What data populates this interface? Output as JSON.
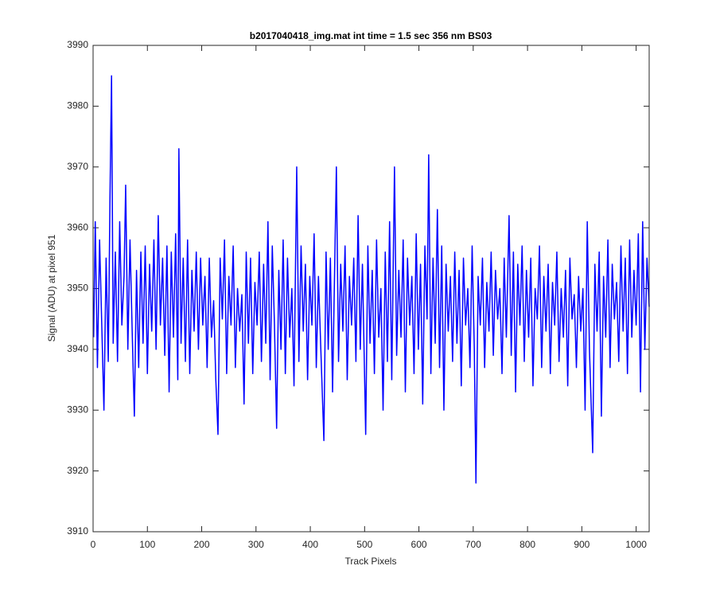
{
  "chart_data": {
    "type": "line",
    "title": "b2017040418_img.mat int time = 1.5 sec  356 nm BS03",
    "x_label": "Track Pixels",
    "y_label": "Signal (ADU) at pixel 951",
    "color": "#0000ff",
    "xlim": [
      0,
      1024
    ],
    "ylim": [
      3910,
      3990
    ],
    "xticks": [
      0,
      100,
      200,
      300,
      400,
      500,
      600,
      700,
      800,
      900,
      1000
    ],
    "yticks": [
      3910,
      3920,
      3930,
      3940,
      3950,
      3960,
      3970,
      3980,
      3990
    ],
    "grid": false,
    "x": [
      1,
      4,
      8,
      12,
      16,
      20,
      24,
      28,
      31,
      34,
      37,
      41,
      45,
      49,
      53,
      57,
      60,
      64,
      68,
      72,
      76,
      80,
      84,
      88,
      92,
      96,
      100,
      104,
      108,
      112,
      116,
      120,
      124,
      128,
      132,
      136,
      140,
      144,
      148,
      152,
      156,
      158,
      162,
      166,
      170,
      174,
      178,
      182,
      186,
      190,
      194,
      198,
      202,
      206,
      210,
      214,
      218,
      222,
      226,
      230,
      234,
      238,
      242,
      246,
      250,
      254,
      258,
      262,
      266,
      270,
      274,
      278,
      282,
      286,
      290,
      294,
      298,
      302,
      306,
      310,
      314,
      318,
      322,
      326,
      330,
      334,
      338,
      342,
      346,
      350,
      354,
      358,
      362,
      366,
      370,
      375,
      379,
      383,
      387,
      391,
      395,
      399,
      403,
      407,
      411,
      415,
      419,
      425,
      429,
      433,
      437,
      441,
      448,
      452,
      456,
      460,
      464,
      468,
      472,
      476,
      480,
      484,
      488,
      492,
      496,
      502,
      506,
      510,
      514,
      518,
      522,
      526,
      530,
      534,
      538,
      542,
      546,
      550,
      555,
      559,
      563,
      567,
      571,
      575,
      579,
      583,
      587,
      591,
      595,
      599,
      603,
      607,
      611,
      615,
      618,
      622,
      626,
      630,
      634,
      638,
      642,
      646,
      650,
      654,
      658,
      662,
      666,
      670,
      674,
      678,
      682,
      686,
      690,
      694,
      698,
      702,
      705,
      709,
      713,
      717,
      721,
      725,
      729,
      733,
      737,
      741,
      745,
      749,
      753,
      757,
      761,
      766,
      770,
      774,
      778,
      782,
      786,
      790,
      794,
      798,
      802,
      806,
      810,
      814,
      818,
      822,
      826,
      830,
      834,
      838,
      842,
      846,
      850,
      854,
      858,
      862,
      866,
      870,
      874,
      878,
      882,
      886,
      890,
      894,
      898,
      902,
      906,
      910,
      914,
      920,
      924,
      928,
      932,
      936,
      940,
      944,
      948,
      952,
      956,
      960,
      964,
      968,
      972,
      976,
      980,
      984,
      988,
      992,
      996,
      1000,
      1004,
      1008,
      1012,
      1016,
      1020,
      1024
    ],
    "values": [
      3942,
      3961,
      3937,
      3958,
      3944,
      3930,
      3955,
      3938,
      3964,
      3985,
      3941,
      3956,
      3938,
      3961,
      3944,
      3952,
      3967,
      3940,
      3958,
      3943,
      3929,
      3953,
      3937,
      3956,
      3941,
      3957,
      3936,
      3954,
      3943,
      3958,
      3940,
      3962,
      3944,
      3955,
      3939,
      3957,
      3933,
      3956,
      3942,
      3959,
      3935,
      3973,
      3941,
      3955,
      3938,
      3958,
      3936,
      3953,
      3943,
      3956,
      3940,
      3955,
      3944,
      3952,
      3937,
      3955,
      3942,
      3948,
      3935,
      3926,
      3955,
      3945,
      3958,
      3936,
      3952,
      3944,
      3957,
      3937,
      3950,
      3943,
      3949,
      3931,
      3956,
      3941,
      3955,
      3936,
      3951,
      3944,
      3956,
      3938,
      3954,
      3941,
      3961,
      3935,
      3957,
      3944,
      3927,
      3953,
      3940,
      3958,
      3936,
      3955,
      3942,
      3950,
      3934,
      3970,
      3938,
      3957,
      3943,
      3954,
      3935,
      3952,
      3944,
      3959,
      3937,
      3952,
      3941,
      3925,
      3956,
      3940,
      3955,
      3933,
      3970,
      3938,
      3954,
      3943,
      3957,
      3935,
      3952,
      3944,
      3955,
      3938,
      3962,
      3940,
      3954,
      3926,
      3957,
      3941,
      3953,
      3936,
      3958,
      3942,
      3950,
      3930,
      3956,
      3938,
      3961,
      3935,
      3970,
      3939,
      3953,
      3942,
      3958,
      3933,
      3955,
      3944,
      3952,
      3936,
      3959,
      3940,
      3954,
      3931,
      3957,
      3945,
      3972,
      3936,
      3955,
      3941,
      3963,
      3937,
      3957,
      3930,
      3954,
      3943,
      3952,
      3938,
      3956,
      3941,
      3953,
      3934,
      3955,
      3944,
      3950,
      3937,
      3957,
      3940,
      3918,
      3952,
      3944,
      3955,
      3937,
      3951,
      3943,
      3956,
      3939,
      3953,
      3945,
      3950,
      3936,
      3955,
      3942,
      3962,
      3939,
      3956,
      3933,
      3954,
      3944,
      3957,
      3938,
      3953,
      3942,
      3955,
      3934,
      3950,
      3945,
      3957,
      3937,
      3952,
      3943,
      3954,
      3936,
      3951,
      3944,
      3956,
      3938,
      3950,
      3942,
      3953,
      3934,
      3955,
      3945,
      3949,
      3937,
      3952,
      3943,
      3950,
      3930,
      3961,
      3940,
      3923,
      3954,
      3943,
      3956,
      3929,
      3952,
      3942,
      3958,
      3937,
      3954,
      3945,
      3951,
      3938,
      3957,
      3943,
      3955,
      3936,
      3958,
      3942,
      3953,
      3944,
      3959,
      3933,
      3961,
      3940,
      3955,
      3947
    ]
  }
}
